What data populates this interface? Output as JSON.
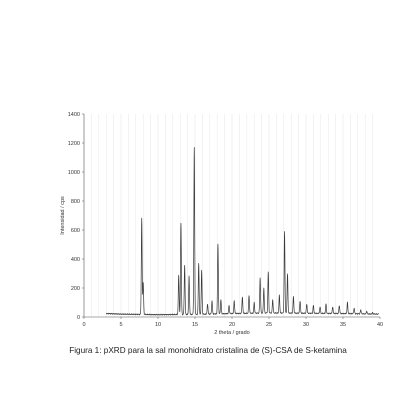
{
  "figure": {
    "caption": "Figura 1: pXRD para la sal monohidrato cristalina de (S)-CSA de S-ketamina"
  },
  "chart_data": {
    "type": "line",
    "xlabel": "2 theta / grado",
    "ylabel": "Intensidad / cps",
    "xlim": [
      0,
      40
    ],
    "ylim": [
      0,
      1400
    ],
    "xticks": [
      0,
      5,
      10,
      15,
      20,
      25,
      30,
      35,
      40
    ],
    "yticks": [
      0,
      200,
      400,
      600,
      800,
      1000,
      1200,
      1400
    ],
    "grid": "vertical",
    "line_color": "#3a3a3a",
    "baseline": [
      [
        3.0,
        24
      ],
      [
        5.0,
        20
      ],
      [
        10.0,
        16
      ],
      [
        15.0,
        18
      ],
      [
        20.0,
        24
      ],
      [
        25.0,
        28
      ],
      [
        30.0,
        26
      ],
      [
        35.0,
        24
      ],
      [
        39.8,
        20
      ]
    ],
    "peaks": [
      {
        "x": 7.8,
        "y": 680
      },
      {
        "x": 8.0,
        "y": 240
      },
      {
        "x": 12.8,
        "y": 290
      },
      {
        "x": 13.1,
        "y": 650
      },
      {
        "x": 13.6,
        "y": 360
      },
      {
        "x": 14.2,
        "y": 280
      },
      {
        "x": 14.9,
        "y": 1170
      },
      {
        "x": 15.5,
        "y": 370
      },
      {
        "x": 15.9,
        "y": 320
      },
      {
        "x": 16.7,
        "y": 90
      },
      {
        "x": 17.3,
        "y": 110
      },
      {
        "x": 18.1,
        "y": 500
      },
      {
        "x": 18.5,
        "y": 120
      },
      {
        "x": 19.6,
        "y": 80
      },
      {
        "x": 20.3,
        "y": 110
      },
      {
        "x": 21.4,
        "y": 140
      },
      {
        "x": 22.3,
        "y": 150
      },
      {
        "x": 23.0,
        "y": 100
      },
      {
        "x": 23.8,
        "y": 270
      },
      {
        "x": 24.3,
        "y": 200
      },
      {
        "x": 24.9,
        "y": 310
      },
      {
        "x": 25.5,
        "y": 120
      },
      {
        "x": 26.4,
        "y": 150
      },
      {
        "x": 27.1,
        "y": 590
      },
      {
        "x": 27.5,
        "y": 300
      },
      {
        "x": 28.3,
        "y": 140
      },
      {
        "x": 29.2,
        "y": 110
      },
      {
        "x": 30.1,
        "y": 90
      },
      {
        "x": 31.0,
        "y": 80
      },
      {
        "x": 31.9,
        "y": 70
      },
      {
        "x": 32.7,
        "y": 90
      },
      {
        "x": 33.6,
        "y": 70
      },
      {
        "x": 34.5,
        "y": 80
      },
      {
        "x": 35.6,
        "y": 100
      },
      {
        "x": 36.5,
        "y": 60
      },
      {
        "x": 37.4,
        "y": 50
      },
      {
        "x": 38.2,
        "y": 40
      },
      {
        "x": 39.0,
        "y": 30
      }
    ]
  }
}
